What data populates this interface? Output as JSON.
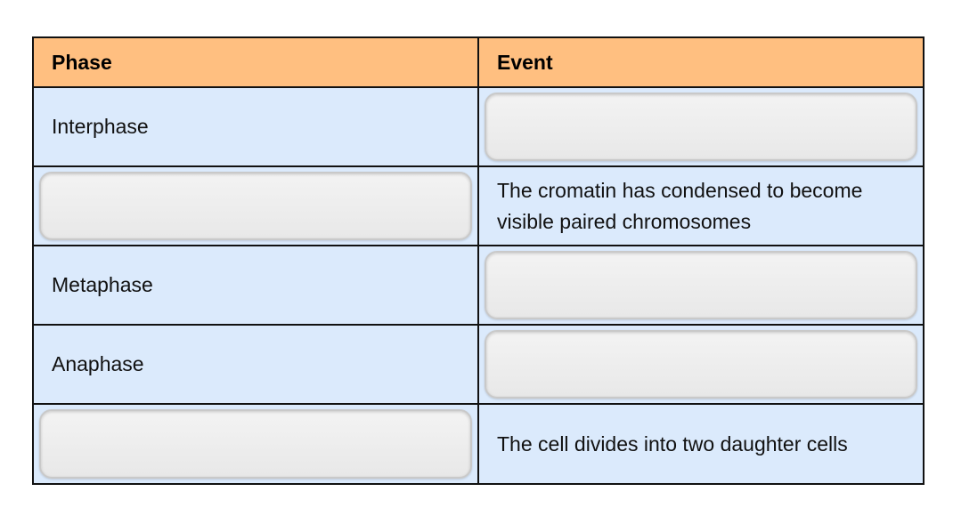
{
  "table": {
    "headers": {
      "phase": "Phase",
      "event": "Event"
    },
    "rows": [
      {
        "phase": "Interphase",
        "event": ""
      },
      {
        "phase": "",
        "event": "The cromatin has condensed to become visible paired chromosomes"
      },
      {
        "phase": "Metaphase",
        "event": ""
      },
      {
        "phase": "Anaphase",
        "event": ""
      },
      {
        "phase": "",
        "event": "The cell divides into two daughter cells"
      }
    ]
  },
  "colors": {
    "header_bg": "#ffbf80",
    "cell_bg": "#dbeafc",
    "slot_bg": "#eeeeee",
    "border": "#111111"
  }
}
